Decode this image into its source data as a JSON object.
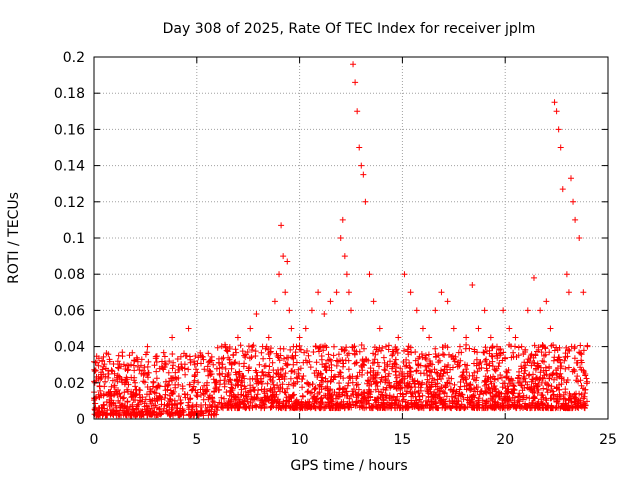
{
  "chart_data": {
    "type": "scatter",
    "title": "Day 308 of 2025, Rate Of TEC Index for receiver jplm",
    "xlabel": "GPS time / hours",
    "ylabel": "ROTI / TECUs",
    "xlim": [
      0,
      25
    ],
    "ylim": [
      0,
      0.2
    ],
    "x_ticks": [
      0,
      5,
      10,
      15,
      20,
      25
    ],
    "x_tick_labels": [
      "0",
      "5",
      "10",
      "15",
      "20",
      "25"
    ],
    "y_ticks": [
      0,
      0.02,
      0.04,
      0.06,
      0.08,
      0.1,
      0.12,
      0.14,
      0.16,
      0.18,
      0.2
    ],
    "y_tick_labels": [
      "0",
      "0.02",
      "0.04",
      "0.06",
      "0.08",
      "0.1",
      "0.12",
      "0.14",
      "0.16",
      "0.18",
      "0.2"
    ],
    "grid": true,
    "marker": "+",
    "marker_color": "#ff0000",
    "series": [
      {
        "name": "ROTI",
        "x": [
          0.1,
          0.3,
          0.5,
          0.8,
          1.0,
          1.2,
          1.5,
          1.8,
          2.0,
          2.3,
          2.6,
          2.9,
          3.2,
          3.5,
          3.8,
          4.0,
          4.3,
          4.6,
          4.9,
          5.2,
          5.5,
          5.8,
          6.1,
          6.4,
          6.7,
          7.0,
          7.3,
          7.6,
          7.9,
          8.2,
          8.5,
          8.8,
          9.0,
          9.1,
          9.2,
          9.3,
          9.4,
          9.5,
          9.6,
          9.7,
          9.8,
          10.0,
          10.3,
          10.6,
          10.9,
          11.2,
          11.5,
          11.8,
          12.0,
          12.1,
          12.2,
          12.3,
          12.4,
          12.5,
          12.6,
          12.7,
          12.8,
          12.9,
          13.0,
          13.1,
          13.2,
          13.4,
          13.6,
          13.9,
          14.2,
          14.5,
          14.8,
          15.1,
          15.4,
          15.7,
          16.0,
          16.3,
          16.6,
          16.9,
          17.2,
          17.5,
          17.8,
          18.1,
          18.4,
          18.7,
          19.0,
          19.3,
          19.6,
          19.9,
          20.2,
          20.5,
          20.8,
          21.1,
          21.4,
          21.7,
          22.0,
          22.2,
          22.4,
          22.5,
          22.6,
          22.7,
          22.8,
          23.0,
          23.1,
          23.2,
          23.3,
          23.4,
          23.6,
          23.8,
          24.0
        ],
        "y": [
          0.012,
          0.022,
          0.018,
          0.015,
          0.025,
          0.035,
          0.02,
          0.03,
          0.018,
          0.025,
          0.04,
          0.02,
          0.018,
          0.03,
          0.045,
          0.022,
          0.028,
          0.05,
          0.03,
          0.035,
          0.02,
          0.03,
          0.025,
          0.04,
          0.03,
          0.045,
          0.035,
          0.05,
          0.058,
          0.04,
          0.045,
          0.065,
          0.08,
          0.107,
          0.09,
          0.07,
          0.087,
          0.06,
          0.05,
          0.04,
          0.035,
          0.045,
          0.05,
          0.06,
          0.07,
          0.058,
          0.065,
          0.07,
          0.1,
          0.11,
          0.09,
          0.08,
          0.07,
          0.06,
          0.196,
          0.186,
          0.17,
          0.15,
          0.14,
          0.135,
          0.12,
          0.08,
          0.065,
          0.05,
          0.04,
          0.035,
          0.045,
          0.08,
          0.07,
          0.06,
          0.05,
          0.045,
          0.06,
          0.07,
          0.065,
          0.05,
          0.04,
          0.045,
          0.074,
          0.05,
          0.06,
          0.045,
          0.04,
          0.06,
          0.05,
          0.045,
          0.04,
          0.06,
          0.078,
          0.06,
          0.065,
          0.05,
          0.175,
          0.17,
          0.16,
          0.15,
          0.127,
          0.08,
          0.07,
          0.133,
          0.12,
          0.11,
          0.1,
          0.07,
          0.04
        ]
      }
    ]
  }
}
